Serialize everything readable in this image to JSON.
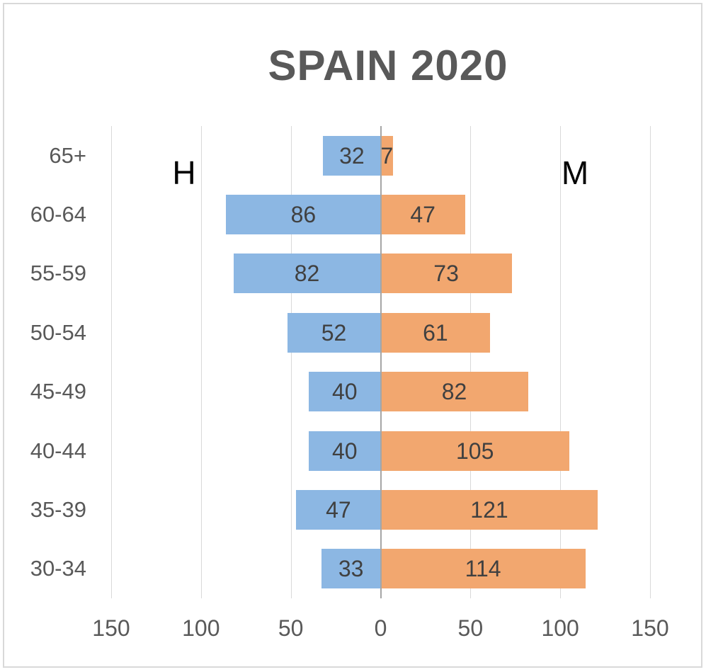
{
  "chart_data": {
    "type": "bar",
    "subtype": "population_pyramid",
    "title": "SPAIN 2020",
    "categories": [
      "65+",
      "60-64",
      "55-59",
      "50-54",
      "45-49",
      "40-44",
      "35-39",
      "30-34"
    ],
    "series": [
      {
        "name": "H",
        "side": "left",
        "color": "#8cb7e3",
        "values": [
          32,
          86,
          82,
          52,
          40,
          40,
          47,
          33
        ]
      },
      {
        "name": "M",
        "side": "right",
        "color": "#f2a76f",
        "values": [
          7,
          47,
          73,
          61,
          82,
          105,
          121,
          114
        ]
      }
    ],
    "x_ticks": [
      "150",
      "100",
      "50",
      "0",
      "50",
      "100",
      "150"
    ],
    "xlim": [
      -150,
      150
    ],
    "grid": true,
    "value_labels": true,
    "legend_position": "in-plot"
  },
  "colors": {
    "grid": "#d9d9d9",
    "zero_axis": "#a6a6a6",
    "axis_text": "#595959",
    "value_text": "#404040",
    "title_text": "#595959",
    "annotation_text": "#000000",
    "frame_border": "#d9d9d9"
  }
}
